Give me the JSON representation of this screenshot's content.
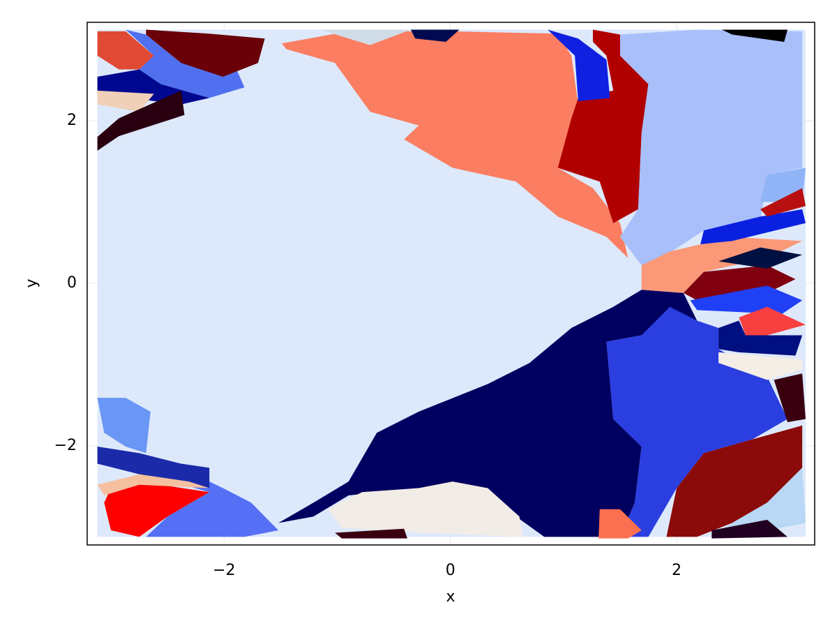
{
  "chart_data": {
    "type": "region",
    "x_label": "x",
    "y_label": "y",
    "xlim": [
      -3.21,
      3.22
    ],
    "ylim": [
      -3.22,
      3.21
    ],
    "xticks": [
      {
        "value": -2,
        "label": "−2"
      },
      0,
      2
    ],
    "yticks": [
      {
        "value": -2,
        "label": "−2"
      },
      0,
      2
    ],
    "grid": true,
    "regions": [
      {
        "color": "#dde9fb",
        "x": [
          -3.12,
          3.14,
          3.14,
          -3.12
        ],
        "y": [
          3.12,
          3.12,
          -3.12,
          -3.12
        ]
      },
      {
        "color": "#fb7e62",
        "x": [
          -1.49,
          -0.9,
          0.02,
          0.95,
          1.07,
          1.13,
          1.07,
          0.95,
          1.26,
          1.5,
          1.57,
          1.38,
          0.95,
          0.58,
          0.02,
          -0.41,
          -0.28,
          -0.71,
          -1.02,
          -1.45
        ],
        "y": [
          2.95,
          3.1,
          3.1,
          3.07,
          2.8,
          2.2,
          1.77,
          1.42,
          1.17,
          0.74,
          0.31,
          0.57,
          0.82,
          1.25,
          1.42,
          1.77,
          1.94,
          2.11,
          2.71,
          2.88
        ]
      },
      {
        "color": "#b10000",
        "x": [
          1.26,
          1.5,
          1.5,
          1.75,
          1.69,
          1.66,
          1.44,
          1.32,
          0.95,
          1.07,
          1.13,
          1.44,
          1.38,
          1.26
        ],
        "y": [
          3.12,
          3.06,
          2.8,
          2.45,
          1.85,
          0.91,
          0.74,
          1.25,
          1.42,
          2.03,
          2.28,
          2.37,
          2.8,
          2.97
        ]
      },
      {
        "color": "#1020e0",
        "x": [
          0.86,
          1.13,
          1.38,
          1.41,
          1.13,
          1.1
        ],
        "y": [
          3.12,
          3.01,
          2.75,
          2.28,
          2.24,
          2.8
        ]
      },
      {
        "color": "#a8bffa",
        "x": [
          1.5,
          2.18,
          3.11,
          3.11,
          2.8,
          2.74,
          2.24,
          1.87,
          1.69,
          1.5,
          1.66,
          1.69,
          1.75,
          1.5
        ],
        "y": [
          3.06,
          3.12,
          3.1,
          1.42,
          1.34,
          0.74,
          0.65,
          0.31,
          0.22,
          0.57,
          0.91,
          1.85,
          2.45,
          2.8
        ]
      },
      {
        "color": "#90b4f5",
        "x": [
          2.8,
          3.14,
          3.11,
          2.74
        ],
        "y": [
          1.34,
          1.42,
          1.0,
          1.0
        ]
      },
      {
        "color": "#000060",
        "x": [
          -1.52,
          -1.21,
          -0.9,
          -0.65,
          -0.28,
          0.33,
          0.7,
          1.07,
          1.44,
          1.69,
          2.06,
          2.18,
          1.69,
          1.38,
          1.44,
          1.69,
          1.63,
          1.5,
          0.83,
          0.58,
          0.33,
          -0.28,
          -0.9,
          -1.21
        ],
        "y": [
          -2.95,
          -2.7,
          -2.44,
          -1.84,
          -1.58,
          -1.24,
          -0.98,
          -0.55,
          -0.29,
          -0.08,
          -0.12,
          -0.46,
          -0.64,
          -0.72,
          -1.67,
          -2.01,
          -2.7,
          -3.12,
          -3.12,
          -2.87,
          -2.52,
          -2.52,
          -2.61,
          -2.87
        ]
      },
      {
        "color": "#2b3ee0",
        "x": [
          1.38,
          1.69,
          1.94,
          2.18,
          2.37,
          2.37,
          2.8,
          2.98,
          2.67,
          2.24,
          2.0,
          1.75,
          1.5,
          1.63,
          1.69,
          1.44
        ],
        "y": [
          -0.72,
          -0.64,
          -0.29,
          -0.46,
          -0.55,
          -0.81,
          -1.15,
          -1.67,
          -1.92,
          -2.09,
          -2.52,
          -3.12,
          -3.12,
          -2.7,
          -2.01,
          -1.67
        ]
      },
      {
        "color": "#8b0a0a",
        "x": [
          2.24,
          2.67,
          3.11,
          3.11,
          2.8,
          2.49,
          2.18,
          1.91,
          2.0
        ],
        "y": [
          -2.09,
          -1.92,
          -1.75,
          -2.27,
          -2.7,
          -2.95,
          -3.12,
          -3.12,
          -2.52
        ]
      },
      {
        "color": "#b8d8f5",
        "x": [
          3.11,
          3.14,
          2.8,
          2.31,
          2.49,
          2.8
        ],
        "y": [
          -2.27,
          -2.95,
          -3.04,
          -3.12,
          -2.95,
          -2.7
        ]
      },
      {
        "color": "#f2ece6",
        "x": [
          -1.08,
          -0.78,
          -0.28,
          0.02,
          0.33,
          0.61,
          0.64,
          -0.28,
          -0.96
        ],
        "y": [
          -2.78,
          -2.57,
          -2.52,
          -2.44,
          -2.52,
          -2.87,
          -3.12,
          -3.07,
          -3.01
        ]
      },
      {
        "color": "#5570f5",
        "x": [
          -2.69,
          -2.13,
          -2.01,
          -1.76,
          -1.52,
          -1.82,
          -2.69,
          -2.5,
          -2.13
        ],
        "y": [
          -2.35,
          -2.44,
          -2.52,
          -2.7,
          -3.04,
          -3.12,
          -3.12,
          -2.87,
          -2.57
        ]
      },
      {
        "color": "#ff0000",
        "x": [
          -3.0,
          -2.75,
          -2.13,
          -2.5,
          -2.75,
          -3.0,
          -3.06
        ],
        "y": [
          -2.52,
          -2.44,
          -2.57,
          -2.87,
          -3.12,
          -3.04,
          -2.7
        ]
      },
      {
        "color": "#1a2aa8",
        "x": [
          -3.12,
          -2.75,
          -2.38,
          -2.13,
          -2.13,
          -2.75,
          -3.12
        ],
        "y": [
          -2.01,
          -2.09,
          -2.22,
          -2.27,
          -2.52,
          -2.35,
          -2.22
        ]
      },
      {
        "color": "#6a96f5",
        "x": [
          -3.12,
          -2.87,
          -2.65,
          -2.69,
          -2.87,
          -3.06
        ],
        "y": [
          -1.41,
          -1.41,
          -1.58,
          -2.09,
          -2.01,
          -1.84
        ]
      },
      {
        "color": "#f5c0a0",
        "x": [
          -3.12,
          -2.75,
          -2.31,
          -2.13,
          -2.75,
          -3.06
        ],
        "y": [
          -2.48,
          -2.35,
          -2.44,
          -2.52,
          -2.48,
          -2.61
        ]
      },
      {
        "color": "#e04a35",
        "x": [
          -3.12,
          -2.87,
          -2.62,
          -2.75,
          -2.93,
          -3.12
        ],
        "y": [
          3.1,
          3.1,
          2.8,
          2.63,
          2.63,
          2.8
        ]
      },
      {
        "color": "#5070f0",
        "x": [
          -2.87,
          -2.69,
          -2.38,
          -1.89,
          -1.82,
          -2.13,
          -2.56,
          -2.75,
          -2.62
        ],
        "y": [
          3.12,
          3.06,
          2.71,
          2.63,
          2.41,
          2.28,
          2.45,
          2.63,
          2.8
        ]
      },
      {
        "color": "#6a0008",
        "x": [
          -2.69,
          -2.13,
          -1.64,
          -1.7,
          -2.01,
          -2.38,
          -2.69
        ],
        "y": [
          3.12,
          3.07,
          3.01,
          2.71,
          2.54,
          2.71,
          3.06
        ]
      },
      {
        "color": "#000890",
        "x": [
          -3.12,
          -2.75,
          -2.56,
          -2.13,
          -2.38,
          -3.12
        ],
        "y": [
          2.54,
          2.63,
          2.45,
          2.28,
          2.2,
          2.33
        ]
      },
      {
        "color": "#f0d0b8",
        "x": [
          -3.12,
          -2.62,
          -2.75,
          -3.12
        ],
        "y": [
          2.37,
          2.33,
          2.11,
          2.2
        ]
      },
      {
        "color": "#2a0010",
        "x": [
          -2.93,
          -2.38,
          -2.35,
          -2.93,
          -3.12,
          -3.12
        ],
        "y": [
          2.03,
          2.37,
          2.07,
          1.81,
          1.63,
          1.8
        ]
      },
      {
        "color": "#fb9878",
        "x": [
          1.69,
          1.94,
          2.49,
          3.11,
          2.8,
          2.24,
          2.06,
          1.69
        ],
        "y": [
          0.22,
          0.39,
          0.57,
          0.52,
          0.31,
          0.14,
          -0.12,
          -0.08
        ]
      },
      {
        "color": "#0a20e0",
        "x": [
          2.24,
          2.74,
          3.11,
          3.14,
          2.49,
          2.21
        ],
        "y": [
          0.65,
          0.82,
          0.91,
          0.74,
          0.52,
          0.48
        ]
      },
      {
        "color": "#b81010",
        "x": [
          2.74,
          3.11,
          3.14,
          2.8
        ],
        "y": [
          0.91,
          1.17,
          0.95,
          0.82
        ]
      },
      {
        "color": "#800010",
        "x": [
          2.24,
          2.8,
          3.05,
          2.8,
          2.18,
          2.06
        ],
        "y": [
          0.14,
          0.22,
          0.05,
          -0.12,
          -0.21,
          -0.12
        ]
      },
      {
        "color": "#001040",
        "x": [
          2.37,
          2.74,
          3.11,
          2.8
        ],
        "y": [
          0.27,
          0.44,
          0.35,
          0.18
        ]
      },
      {
        "color": "#2040f5",
        "x": [
          2.12,
          2.8,
          3.11,
          2.93,
          2.18
        ],
        "y": [
          -0.21,
          -0.03,
          -0.21,
          -0.38,
          -0.33
        ]
      },
      {
        "color": "#f84040",
        "x": [
          2.55,
          2.8,
          3.14,
          2.8,
          2.61
        ],
        "y": [
          -0.42,
          -0.29,
          -0.51,
          -0.64,
          -0.64
        ]
      },
      {
        "color": "#001080",
        "x": [
          2.37,
          2.55,
          2.61,
          3.11,
          3.05,
          2.55,
          2.37
        ],
        "y": [
          -0.55,
          -0.46,
          -0.64,
          -0.64,
          -0.89,
          -0.85,
          -0.81
        ]
      },
      {
        "color": "#f4eee6",
        "x": [
          2.37,
          3.11,
          3.11,
          2.8,
          2.37
        ],
        "y": [
          -0.85,
          -0.94,
          -1.06,
          -1.19,
          -0.98
        ]
      },
      {
        "color": "#3a0010",
        "x": [
          2.86,
          3.11,
          3.14,
          2.98
        ],
        "y": [
          -1.19,
          -1.11,
          -1.67,
          -1.71
        ]
      },
      {
        "color": "#3a0010",
        "x": [
          -1.02,
          -0.41,
          -0.38,
          -0.96
        ],
        "y": [
          -3.07,
          -3.02,
          -3.14,
          -3.14
        ]
      },
      {
        "color": "#fb7050",
        "x": [
          1.32,
          1.5,
          1.69,
          1.57,
          1.31
        ],
        "y": [
          -2.78,
          -2.78,
          -3.04,
          -3.14,
          -3.14
        ]
      },
      {
        "color": "#200020",
        "x": [
          2.31,
          2.8,
          2.98,
          2.31
        ],
        "y": [
          -3.04,
          -2.91,
          -3.12,
          -3.14
        ]
      },
      {
        "color": "#000a50",
        "x": [
          -0.35,
          0.08,
          -0.04,
          -0.31
        ],
        "y": [
          3.12,
          3.12,
          2.97,
          3.01
        ]
      },
      {
        "color": "#000000",
        "x": [
          2.4,
          2.98,
          2.95,
          2.49
        ],
        "y": [
          3.12,
          3.12,
          2.97,
          3.06
        ]
      },
      {
        "color": "#d0dde8",
        "x": [
          -1.15,
          -0.35,
          -0.71
        ],
        "y": [
          3.12,
          3.12,
          2.93
        ]
      }
    ]
  }
}
